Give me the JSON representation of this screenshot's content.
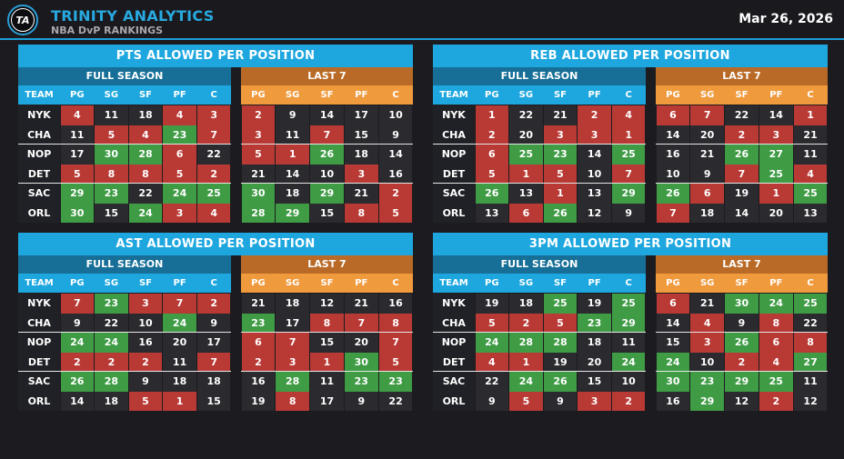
{
  "header": {
    "logo_text": "TA",
    "brand": "TRINITY ANALYTICS",
    "subtitle": "NBA DvP RANKINGS",
    "date": "Mar 26, 2026"
  },
  "labels": {
    "full_season": "FULL SEASON",
    "last7": "LAST 7",
    "team": "TEAM",
    "positions": [
      "PG",
      "SG",
      "SF",
      "PF",
      "C"
    ]
  },
  "colors": {
    "red": "#b93a35",
    "green": "#3f9c45",
    "neutral": "#2a2a2f",
    "accent": "#1ea7df",
    "orange": "#f09a3e"
  },
  "teams": [
    "NYK",
    "CHA",
    "NOP",
    "DET",
    "SAC",
    "ORL"
  ],
  "panels": [
    {
      "title": "PTS ALLOWED PER POSITION",
      "full": [
        [
          {
            "v": "4",
            "c": "red"
          },
          {
            "v": "11",
            "c": "n"
          },
          {
            "v": "18",
            "c": "n"
          },
          {
            "v": "4",
            "c": "red"
          },
          {
            "v": "3",
            "c": "red"
          }
        ],
        [
          {
            "v": "11",
            "c": "n"
          },
          {
            "v": "5",
            "c": "red"
          },
          {
            "v": "4",
            "c": "red"
          },
          {
            "v": "23",
            "c": "green"
          },
          {
            "v": "7",
            "c": "red"
          }
        ],
        [
          {
            "v": "17",
            "c": "n"
          },
          {
            "v": "30",
            "c": "green"
          },
          {
            "v": "28",
            "c": "green"
          },
          {
            "v": "6",
            "c": "red"
          },
          {
            "v": "22",
            "c": "n"
          }
        ],
        [
          {
            "v": "5",
            "c": "red"
          },
          {
            "v": "8",
            "c": "red"
          },
          {
            "v": "8",
            "c": "red"
          },
          {
            "v": "5",
            "c": "red"
          },
          {
            "v": "2",
            "c": "red"
          }
        ],
        [
          {
            "v": "29",
            "c": "green"
          },
          {
            "v": "23",
            "c": "green"
          },
          {
            "v": "22",
            "c": "n"
          },
          {
            "v": "24",
            "c": "green"
          },
          {
            "v": "25",
            "c": "green"
          }
        ],
        [
          {
            "v": "30",
            "c": "green"
          },
          {
            "v": "15",
            "c": "n"
          },
          {
            "v": "24",
            "c": "green"
          },
          {
            "v": "3",
            "c": "red"
          },
          {
            "v": "4",
            "c": "red"
          }
        ]
      ],
      "last7": [
        [
          {
            "v": "2",
            "c": "red"
          },
          {
            "v": "9",
            "c": "n"
          },
          {
            "v": "14",
            "c": "n"
          },
          {
            "v": "17",
            "c": "n"
          },
          {
            "v": "10",
            "c": "n"
          }
        ],
        [
          {
            "v": "3",
            "c": "red"
          },
          {
            "v": "11",
            "c": "n"
          },
          {
            "v": "7",
            "c": "red"
          },
          {
            "v": "15",
            "c": "n"
          },
          {
            "v": "9",
            "c": "n"
          }
        ],
        [
          {
            "v": "5",
            "c": "red"
          },
          {
            "v": "1",
            "c": "red"
          },
          {
            "v": "26",
            "c": "green"
          },
          {
            "v": "18",
            "c": "n"
          },
          {
            "v": "14",
            "c": "n"
          }
        ],
        [
          {
            "v": "21",
            "c": "n"
          },
          {
            "v": "14",
            "c": "n"
          },
          {
            "v": "10",
            "c": "n"
          },
          {
            "v": "3",
            "c": "red"
          },
          {
            "v": "16",
            "c": "n"
          }
        ],
        [
          {
            "v": "30",
            "c": "green"
          },
          {
            "v": "18",
            "c": "n"
          },
          {
            "v": "29",
            "c": "green"
          },
          {
            "v": "21",
            "c": "n"
          },
          {
            "v": "2",
            "c": "red"
          }
        ],
        [
          {
            "v": "28",
            "c": "green"
          },
          {
            "v": "29",
            "c": "green"
          },
          {
            "v": "15",
            "c": "n"
          },
          {
            "v": "8",
            "c": "red"
          },
          {
            "v": "5",
            "c": "red"
          }
        ]
      ]
    },
    {
      "title": "REB ALLOWED PER POSITION",
      "full": [
        [
          {
            "v": "1",
            "c": "red"
          },
          {
            "v": "22",
            "c": "n"
          },
          {
            "v": "21",
            "c": "n"
          },
          {
            "v": "2",
            "c": "red"
          },
          {
            "v": "4",
            "c": "red"
          }
        ],
        [
          {
            "v": "2",
            "c": "red"
          },
          {
            "v": "20",
            "c": "n"
          },
          {
            "v": "3",
            "c": "red"
          },
          {
            "v": "3",
            "c": "red"
          },
          {
            "v": "1",
            "c": "red"
          }
        ],
        [
          {
            "v": "6",
            "c": "red"
          },
          {
            "v": "25",
            "c": "green"
          },
          {
            "v": "23",
            "c": "green"
          },
          {
            "v": "14",
            "c": "n"
          },
          {
            "v": "25",
            "c": "green"
          }
        ],
        [
          {
            "v": "5",
            "c": "red"
          },
          {
            "v": "1",
            "c": "red"
          },
          {
            "v": "5",
            "c": "red"
          },
          {
            "v": "10",
            "c": "n"
          },
          {
            "v": "7",
            "c": "red"
          }
        ],
        [
          {
            "v": "26",
            "c": "green"
          },
          {
            "v": "13",
            "c": "n"
          },
          {
            "v": "1",
            "c": "red"
          },
          {
            "v": "13",
            "c": "n"
          },
          {
            "v": "29",
            "c": "green"
          }
        ],
        [
          {
            "v": "13",
            "c": "n"
          },
          {
            "v": "6",
            "c": "red"
          },
          {
            "v": "26",
            "c": "green"
          },
          {
            "v": "12",
            "c": "n"
          },
          {
            "v": "9",
            "c": "n"
          }
        ]
      ],
      "last7": [
        [
          {
            "v": "6",
            "c": "red"
          },
          {
            "v": "7",
            "c": "red"
          },
          {
            "v": "22",
            "c": "n"
          },
          {
            "v": "14",
            "c": "n"
          },
          {
            "v": "1",
            "c": "red"
          }
        ],
        [
          {
            "v": "14",
            "c": "n"
          },
          {
            "v": "20",
            "c": "n"
          },
          {
            "v": "2",
            "c": "red"
          },
          {
            "v": "3",
            "c": "red"
          },
          {
            "v": "21",
            "c": "n"
          }
        ],
        [
          {
            "v": "16",
            "c": "n"
          },
          {
            "v": "21",
            "c": "n"
          },
          {
            "v": "26",
            "c": "green"
          },
          {
            "v": "27",
            "c": "green"
          },
          {
            "v": "11",
            "c": "n"
          }
        ],
        [
          {
            "v": "10",
            "c": "n"
          },
          {
            "v": "9",
            "c": "n"
          },
          {
            "v": "7",
            "c": "red"
          },
          {
            "v": "25",
            "c": "green"
          },
          {
            "v": "4",
            "c": "red"
          }
        ],
        [
          {
            "v": "26",
            "c": "green"
          },
          {
            "v": "6",
            "c": "red"
          },
          {
            "v": "19",
            "c": "n"
          },
          {
            "v": "1",
            "c": "red"
          },
          {
            "v": "25",
            "c": "green"
          }
        ],
        [
          {
            "v": "7",
            "c": "red"
          },
          {
            "v": "18",
            "c": "n"
          },
          {
            "v": "14",
            "c": "n"
          },
          {
            "v": "20",
            "c": "n"
          },
          {
            "v": "13",
            "c": "n"
          }
        ]
      ]
    },
    {
      "title": "AST ALLOWED PER POSITION",
      "full": [
        [
          {
            "v": "7",
            "c": "red"
          },
          {
            "v": "23",
            "c": "green"
          },
          {
            "v": "3",
            "c": "red"
          },
          {
            "v": "7",
            "c": "red"
          },
          {
            "v": "2",
            "c": "red"
          }
        ],
        [
          {
            "v": "9",
            "c": "n"
          },
          {
            "v": "22",
            "c": "n"
          },
          {
            "v": "10",
            "c": "n"
          },
          {
            "v": "24",
            "c": "green"
          },
          {
            "v": "9",
            "c": "n"
          }
        ],
        [
          {
            "v": "24",
            "c": "green"
          },
          {
            "v": "24",
            "c": "green"
          },
          {
            "v": "16",
            "c": "n"
          },
          {
            "v": "20",
            "c": "n"
          },
          {
            "v": "17",
            "c": "n"
          }
        ],
        [
          {
            "v": "2",
            "c": "red"
          },
          {
            "v": "2",
            "c": "red"
          },
          {
            "v": "2",
            "c": "red"
          },
          {
            "v": "11",
            "c": "n"
          },
          {
            "v": "7",
            "c": "red"
          }
        ],
        [
          {
            "v": "26",
            "c": "green"
          },
          {
            "v": "28",
            "c": "green"
          },
          {
            "v": "9",
            "c": "n"
          },
          {
            "v": "18",
            "c": "n"
          },
          {
            "v": "18",
            "c": "n"
          }
        ],
        [
          {
            "v": "14",
            "c": "n"
          },
          {
            "v": "18",
            "c": "n"
          },
          {
            "v": "5",
            "c": "red"
          },
          {
            "v": "1",
            "c": "red"
          },
          {
            "v": "15",
            "c": "n"
          }
        ]
      ],
      "last7": [
        [
          {
            "v": "21",
            "c": "n"
          },
          {
            "v": "18",
            "c": "n"
          },
          {
            "v": "12",
            "c": "n"
          },
          {
            "v": "21",
            "c": "n"
          },
          {
            "v": "16",
            "c": "n"
          }
        ],
        [
          {
            "v": "23",
            "c": "green"
          },
          {
            "v": "17",
            "c": "n"
          },
          {
            "v": "8",
            "c": "red"
          },
          {
            "v": "7",
            "c": "red"
          },
          {
            "v": "8",
            "c": "red"
          }
        ],
        [
          {
            "v": "6",
            "c": "red"
          },
          {
            "v": "7",
            "c": "red"
          },
          {
            "v": "15",
            "c": "n"
          },
          {
            "v": "20",
            "c": "n"
          },
          {
            "v": "7",
            "c": "red"
          }
        ],
        [
          {
            "v": "2",
            "c": "red"
          },
          {
            "v": "3",
            "c": "red"
          },
          {
            "v": "1",
            "c": "red"
          },
          {
            "v": "30",
            "c": "green"
          },
          {
            "v": "5",
            "c": "red"
          }
        ],
        [
          {
            "v": "16",
            "c": "n"
          },
          {
            "v": "28",
            "c": "green"
          },
          {
            "v": "11",
            "c": "n"
          },
          {
            "v": "23",
            "c": "green"
          },
          {
            "v": "23",
            "c": "green"
          }
        ],
        [
          {
            "v": "19",
            "c": "n"
          },
          {
            "v": "8",
            "c": "red"
          },
          {
            "v": "17",
            "c": "n"
          },
          {
            "v": "9",
            "c": "n"
          },
          {
            "v": "22",
            "c": "n"
          }
        ]
      ]
    },
    {
      "title": "3PM ALLOWED PER POSITION",
      "full": [
        [
          {
            "v": "19",
            "c": "n"
          },
          {
            "v": "18",
            "c": "n"
          },
          {
            "v": "25",
            "c": "green"
          },
          {
            "v": "19",
            "c": "n"
          },
          {
            "v": "25",
            "c": "green"
          }
        ],
        [
          {
            "v": "5",
            "c": "red"
          },
          {
            "v": "2",
            "c": "red"
          },
          {
            "v": "5",
            "c": "red"
          },
          {
            "v": "23",
            "c": "green"
          },
          {
            "v": "29",
            "c": "green"
          }
        ],
        [
          {
            "v": "24",
            "c": "green"
          },
          {
            "v": "28",
            "c": "green"
          },
          {
            "v": "28",
            "c": "green"
          },
          {
            "v": "18",
            "c": "n"
          },
          {
            "v": "11",
            "c": "n"
          }
        ],
        [
          {
            "v": "4",
            "c": "red"
          },
          {
            "v": "1",
            "c": "red"
          },
          {
            "v": "19",
            "c": "n"
          },
          {
            "v": "20",
            "c": "n"
          },
          {
            "v": "24",
            "c": "green"
          }
        ],
        [
          {
            "v": "22",
            "c": "n"
          },
          {
            "v": "24",
            "c": "green"
          },
          {
            "v": "26",
            "c": "green"
          },
          {
            "v": "15",
            "c": "n"
          },
          {
            "v": "10",
            "c": "n"
          }
        ],
        [
          {
            "v": "9",
            "c": "n"
          },
          {
            "v": "5",
            "c": "red"
          },
          {
            "v": "9",
            "c": "n"
          },
          {
            "v": "3",
            "c": "red"
          },
          {
            "v": "2",
            "c": "red"
          }
        ]
      ],
      "last7": [
        [
          {
            "v": "6",
            "c": "red"
          },
          {
            "v": "21",
            "c": "n"
          },
          {
            "v": "30",
            "c": "green"
          },
          {
            "v": "24",
            "c": "green"
          },
          {
            "v": "25",
            "c": "green"
          }
        ],
        [
          {
            "v": "14",
            "c": "n"
          },
          {
            "v": "4",
            "c": "red"
          },
          {
            "v": "9",
            "c": "n"
          },
          {
            "v": "8",
            "c": "red"
          },
          {
            "v": "22",
            "c": "n"
          }
        ],
        [
          {
            "v": "15",
            "c": "n"
          },
          {
            "v": "3",
            "c": "red"
          },
          {
            "v": "26",
            "c": "green"
          },
          {
            "v": "6",
            "c": "red"
          },
          {
            "v": "8",
            "c": "red"
          }
        ],
        [
          {
            "v": "24",
            "c": "green"
          },
          {
            "v": "10",
            "c": "n"
          },
          {
            "v": "2",
            "c": "red"
          },
          {
            "v": "4",
            "c": "red"
          },
          {
            "v": "27",
            "c": "green"
          }
        ],
        [
          {
            "v": "30",
            "c": "green"
          },
          {
            "v": "23",
            "c": "green"
          },
          {
            "v": "29",
            "c": "green"
          },
          {
            "v": "25",
            "c": "green"
          },
          {
            "v": "11",
            "c": "n"
          }
        ],
        [
          {
            "v": "16",
            "c": "n"
          },
          {
            "v": "29",
            "c": "green"
          },
          {
            "v": "12",
            "c": "n"
          },
          {
            "v": "2",
            "c": "red"
          },
          {
            "v": "12",
            "c": "n"
          }
        ]
      ]
    }
  ]
}
